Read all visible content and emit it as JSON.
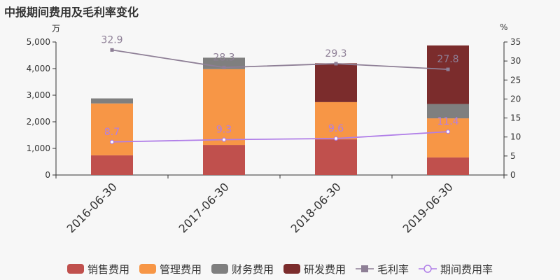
{
  "chart_data": {
    "type": "bar",
    "title": "中报期间费用及毛利率变化",
    "left_unit": "万",
    "right_unit": "%",
    "categories": [
      "2016-06-30",
      "2017-06-30",
      "2018-06-30",
      "2019-06-30"
    ],
    "ylim_left": [
      0,
      5000
    ],
    "yticks_left": [
      0,
      1000,
      2000,
      3000,
      4000,
      5000
    ],
    "ytick_labels_left": [
      "0",
      "1,000",
      "2,000",
      "3,000",
      "4,000",
      "5,000"
    ],
    "ylim_right": [
      0,
      35
    ],
    "yticks_right": [
      0,
      5,
      10,
      15,
      20,
      25,
      30,
      35
    ],
    "ytick_labels_right": [
      "0",
      "5",
      "10",
      "15",
      "20",
      "25",
      "30",
      "35"
    ],
    "bar_series": [
      {
        "name": "销售费用",
        "color": "#c0504d",
        "values": [
          740,
          1130,
          1340,
          660
        ]
      },
      {
        "name": "管理费用",
        "color": "#f79646",
        "values": [
          1950,
          2850,
          1400,
          1470
        ]
      },
      {
        "name": "财务费用",
        "color": "#7f7f7f",
        "values": [
          190,
          430,
          0,
          540
        ]
      },
      {
        "name": "研发费用",
        "color": "#7b2c2c",
        "values": [
          0,
          0,
          1460,
          2200
        ]
      }
    ],
    "line_series": [
      {
        "name": "毛利率",
        "color": "#8e7f96",
        "marker": "square",
        "values": [
          32.9,
          28.3,
          29.3,
          27.8
        ],
        "labels": [
          "32.9",
          "28.3",
          "29.3",
          "27.8"
        ]
      },
      {
        "name": "期间费用率",
        "color": "#b07ee8",
        "marker": "circle",
        "values": [
          8.7,
          9.3,
          9.6,
          11.4
        ],
        "labels": [
          "8.7",
          "9.3",
          "9.6",
          "11.4"
        ]
      }
    ],
    "grid": false,
    "legend_position": "bottom"
  }
}
